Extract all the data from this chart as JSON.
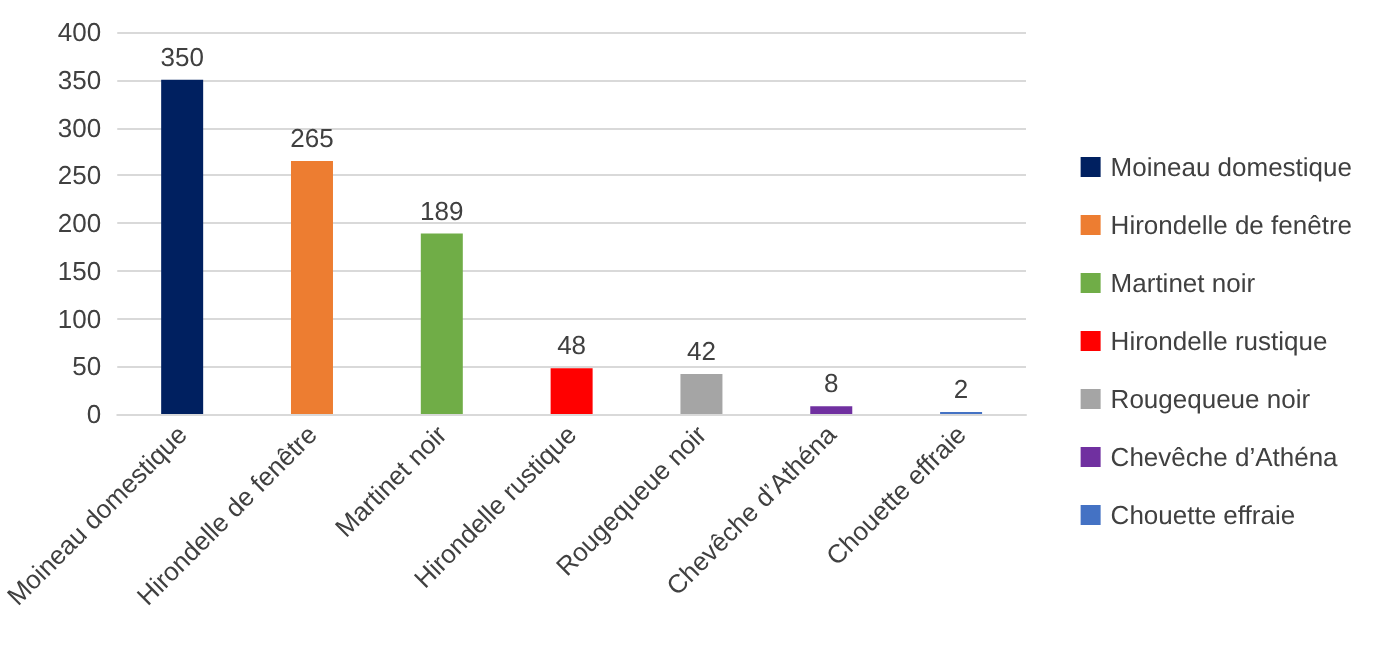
{
  "chart_data": {
    "type": "bar",
    "categories": [
      "Moineau domestique",
      "Hirondelle de fenêtre",
      "Martinet noir",
      "Hirondelle rustique",
      "Rougequeue noir",
      "Chevêche d’Athéna",
      "Chouette effraie"
    ],
    "series": [
      {
        "name": "Moineau domestique",
        "color": "#002060",
        "values": [
          350,
          null,
          null,
          null,
          null,
          null,
          null
        ]
      },
      {
        "name": "Hirondelle de fenêtre",
        "color": "#ed7d31",
        "values": [
          null,
          265,
          null,
          null,
          null,
          null,
          null
        ]
      },
      {
        "name": "Martinet noir",
        "color": "#70ad47",
        "values": [
          null,
          null,
          189,
          null,
          null,
          null,
          null
        ]
      },
      {
        "name": "Hirondelle rustique",
        "color": "#ff0000",
        "values": [
          null,
          null,
          null,
          48,
          null,
          null,
          null
        ]
      },
      {
        "name": "Rougequeue noir",
        "color": "#a5a5a5",
        "values": [
          null,
          null,
          null,
          null,
          42,
          null,
          null
        ]
      },
      {
        "name": "Chevêche d’Athéna",
        "color": "#7030a0",
        "values": [
          null,
          null,
          null,
          null,
          null,
          8,
          null
        ]
      },
      {
        "name": "Chouette effraie",
        "color": "#4472c4",
        "values": [
          null,
          null,
          null,
          null,
          null,
          null,
          2
        ]
      }
    ],
    "ylim": [
      0,
      400
    ],
    "yticks": [
      0,
      50,
      100,
      150,
      200,
      250,
      300,
      350,
      400
    ],
    "grid": "y",
    "legend": "right",
    "data_labels": true
  }
}
